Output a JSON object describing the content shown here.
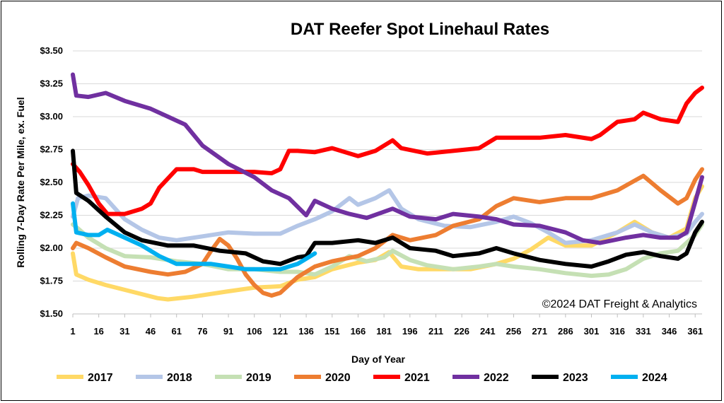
{
  "chart_data": {
    "type": "line",
    "title": "DAT Reefer Spot Linehaul Rates",
    "xlabel": "Day of Year",
    "ylabel": "Rolling 7-Day Rate Per Mile, ex. Fuel",
    "annotation": "©2024 DAT Freight & Analytics",
    "xlim": [
      1,
      365
    ],
    "ylim": [
      1.5,
      3.5
    ],
    "x_ticks": [
      1,
      16,
      31,
      46,
      61,
      76,
      91,
      106,
      121,
      136,
      151,
      166,
      181,
      196,
      211,
      226,
      241,
      256,
      271,
      286,
      301,
      316,
      331,
      346,
      361
    ],
    "y_ticks": [
      1.5,
      1.75,
      2.0,
      2.25,
      2.5,
      2.75,
      3.0,
      3.25,
      3.5
    ],
    "y_tick_labels": [
      "$1.50",
      "$1.75",
      "$2.00",
      "$2.25",
      "$2.50",
      "$2.75",
      "$3.00",
      "$3.25",
      "$3.50"
    ],
    "grid": true,
    "legend_position": "bottom",
    "series": [
      {
        "name": "2017",
        "color": "#ffd966",
        "points": [
          [
            1,
            1.96
          ],
          [
            3,
            1.8
          ],
          [
            10,
            1.76
          ],
          [
            20,
            1.72
          ],
          [
            35,
            1.67
          ],
          [
            50,
            1.62
          ],
          [
            56,
            1.61
          ],
          [
            70,
            1.63
          ],
          [
            90,
            1.67
          ],
          [
            106,
            1.7
          ],
          [
            121,
            1.71
          ],
          [
            131,
            1.76
          ],
          [
            141,
            1.78
          ],
          [
            151,
            1.84
          ],
          [
            166,
            1.89
          ],
          [
            176,
            1.91
          ],
          [
            184,
            1.97
          ],
          [
            191,
            1.86
          ],
          [
            201,
            1.84
          ],
          [
            216,
            1.84
          ],
          [
            231,
            1.84
          ],
          [
            246,
            1.88
          ],
          [
            256,
            1.92
          ],
          [
            266,
            1.99
          ],
          [
            276,
            2.08
          ],
          [
            286,
            2.02
          ],
          [
            301,
            2.02
          ],
          [
            316,
            2.12
          ],
          [
            326,
            2.2
          ],
          [
            336,
            2.12
          ],
          [
            346,
            2.08
          ],
          [
            356,
            2.15
          ],
          [
            361,
            2.38
          ],
          [
            365,
            2.47
          ]
        ]
      },
      {
        "name": "2018",
        "color": "#b4c6e7",
        "points": [
          [
            1,
            2.24
          ],
          [
            4,
            2.38
          ],
          [
            10,
            2.4
          ],
          [
            20,
            2.38
          ],
          [
            31,
            2.22
          ],
          [
            41,
            2.14
          ],
          [
            51,
            2.08
          ],
          [
            61,
            2.06
          ],
          [
            76,
            2.09
          ],
          [
            91,
            2.12
          ],
          [
            106,
            2.11
          ],
          [
            121,
            2.11
          ],
          [
            131,
            2.17
          ],
          [
            141,
            2.22
          ],
          [
            151,
            2.28
          ],
          [
            161,
            2.38
          ],
          [
            166,
            2.33
          ],
          [
            176,
            2.38
          ],
          [
            184,
            2.44
          ],
          [
            191,
            2.3
          ],
          [
            201,
            2.22
          ],
          [
            216,
            2.17
          ],
          [
            231,
            2.16
          ],
          [
            246,
            2.2
          ],
          [
            256,
            2.24
          ],
          [
            266,
            2.19
          ],
          [
            276,
            2.12
          ],
          [
            286,
            2.04
          ],
          [
            301,
            2.06
          ],
          [
            316,
            2.12
          ],
          [
            326,
            2.18
          ],
          [
            336,
            2.12
          ],
          [
            346,
            2.08
          ],
          [
            356,
            2.11
          ],
          [
            361,
            2.2
          ],
          [
            365,
            2.26
          ]
        ]
      },
      {
        "name": "2019",
        "color": "#c5e0b4",
        "points": [
          [
            1,
            2.18
          ],
          [
            4,
            2.15
          ],
          [
            10,
            2.08
          ],
          [
            20,
            2.0
          ],
          [
            31,
            1.94
          ],
          [
            46,
            1.93
          ],
          [
            61,
            1.9
          ],
          [
            76,
            1.88
          ],
          [
            91,
            1.84
          ],
          [
            106,
            1.84
          ],
          [
            121,
            1.82
          ],
          [
            131,
            1.82
          ],
          [
            141,
            1.8
          ],
          [
            151,
            1.86
          ],
          [
            161,
            1.94
          ],
          [
            171,
            1.9
          ],
          [
            181,
            1.93
          ],
          [
            186,
            1.98
          ],
          [
            196,
            1.91
          ],
          [
            206,
            1.87
          ],
          [
            221,
            1.84
          ],
          [
            236,
            1.86
          ],
          [
            246,
            1.88
          ],
          [
            256,
            1.86
          ],
          [
            271,
            1.84
          ],
          [
            286,
            1.81
          ],
          [
            301,
            1.79
          ],
          [
            311,
            1.8
          ],
          [
            321,
            1.84
          ],
          [
            331,
            1.92
          ],
          [
            341,
            1.96
          ],
          [
            351,
            1.98
          ],
          [
            361,
            2.1
          ],
          [
            365,
            2.18
          ]
        ]
      },
      {
        "name": "2020",
        "color": "#ed7d31",
        "points": [
          [
            1,
            2.0
          ],
          [
            3,
            2.04
          ],
          [
            10,
            2.0
          ],
          [
            20,
            1.93
          ],
          [
            31,
            1.86
          ],
          [
            46,
            1.82
          ],
          [
            56,
            1.8
          ],
          [
            66,
            1.82
          ],
          [
            76,
            1.88
          ],
          [
            81,
            1.98
          ],
          [
            86,
            2.07
          ],
          [
            91,
            2.02
          ],
          [
            96,
            1.92
          ],
          [
            101,
            1.8
          ],
          [
            106,
            1.72
          ],
          [
            111,
            1.66
          ],
          [
            116,
            1.64
          ],
          [
            121,
            1.66
          ],
          [
            131,
            1.78
          ],
          [
            141,
            1.86
          ],
          [
            151,
            1.9
          ],
          [
            166,
            1.94
          ],
          [
            176,
            2.0
          ],
          [
            186,
            2.1
          ],
          [
            196,
            2.06
          ],
          [
            211,
            2.1
          ],
          [
            221,
            2.17
          ],
          [
            236,
            2.22
          ],
          [
            246,
            2.32
          ],
          [
            256,
            2.38
          ],
          [
            271,
            2.35
          ],
          [
            286,
            2.38
          ],
          [
            301,
            2.38
          ],
          [
            316,
            2.44
          ],
          [
            331,
            2.55
          ],
          [
            341,
            2.44
          ],
          [
            351,
            2.34
          ],
          [
            356,
            2.38
          ],
          [
            361,
            2.52
          ],
          [
            365,
            2.6
          ]
        ]
      },
      {
        "name": "2021",
        "color": "#ff0000",
        "points": [
          [
            1,
            2.64
          ],
          [
            5,
            2.58
          ],
          [
            10,
            2.48
          ],
          [
            16,
            2.34
          ],
          [
            21,
            2.26
          ],
          [
            31,
            2.26
          ],
          [
            41,
            2.3
          ],
          [
            46,
            2.34
          ],
          [
            51,
            2.46
          ],
          [
            56,
            2.53
          ],
          [
            61,
            2.6
          ],
          [
            71,
            2.6
          ],
          [
            76,
            2.58
          ],
          [
            91,
            2.58
          ],
          [
            106,
            2.58
          ],
          [
            116,
            2.57
          ],
          [
            121,
            2.6
          ],
          [
            126,
            2.74
          ],
          [
            131,
            2.74
          ],
          [
            141,
            2.73
          ],
          [
            151,
            2.76
          ],
          [
            166,
            2.7
          ],
          [
            176,
            2.74
          ],
          [
            186,
            2.82
          ],
          [
            191,
            2.76
          ],
          [
            206,
            2.72
          ],
          [
            221,
            2.74
          ],
          [
            236,
            2.76
          ],
          [
            246,
            2.84
          ],
          [
            256,
            2.84
          ],
          [
            271,
            2.84
          ],
          [
            286,
            2.86
          ],
          [
            301,
            2.83
          ],
          [
            306,
            2.86
          ],
          [
            316,
            2.96
          ],
          [
            326,
            2.98
          ],
          [
            331,
            3.03
          ],
          [
            341,
            2.98
          ],
          [
            351,
            2.96
          ],
          [
            356,
            3.1
          ],
          [
            361,
            3.18
          ],
          [
            365,
            3.22
          ]
        ]
      },
      {
        "name": "2022",
        "color": "#7030a0",
        "points": [
          [
            1,
            3.32
          ],
          [
            3,
            3.16
          ],
          [
            10,
            3.15
          ],
          [
            20,
            3.18
          ],
          [
            31,
            3.12
          ],
          [
            46,
            3.06
          ],
          [
            56,
            3.0
          ],
          [
            66,
            2.94
          ],
          [
            76,
            2.78
          ],
          [
            91,
            2.64
          ],
          [
            106,
            2.54
          ],
          [
            116,
            2.44
          ],
          [
            126,
            2.38
          ],
          [
            136,
            2.25
          ],
          [
            141,
            2.36
          ],
          [
            151,
            2.3
          ],
          [
            161,
            2.26
          ],
          [
            171,
            2.23
          ],
          [
            186,
            2.3
          ],
          [
            196,
            2.24
          ],
          [
            211,
            2.22
          ],
          [
            221,
            2.26
          ],
          [
            236,
            2.24
          ],
          [
            246,
            2.22
          ],
          [
            256,
            2.18
          ],
          [
            271,
            2.17
          ],
          [
            286,
            2.12
          ],
          [
            296,
            2.06
          ],
          [
            306,
            2.04
          ],
          [
            321,
            2.08
          ],
          [
            331,
            2.1
          ],
          [
            341,
            2.08
          ],
          [
            351,
            2.08
          ],
          [
            356,
            2.12
          ],
          [
            361,
            2.35
          ],
          [
            365,
            2.54
          ]
        ]
      },
      {
        "name": "2023",
        "color": "#000000",
        "points": [
          [
            1,
            2.74
          ],
          [
            3,
            2.42
          ],
          [
            10,
            2.36
          ],
          [
            20,
            2.24
          ],
          [
            31,
            2.12
          ],
          [
            41,
            2.06
          ],
          [
            56,
            2.02
          ],
          [
            71,
            2.02
          ],
          [
            86,
            1.98
          ],
          [
            101,
            1.96
          ],
          [
            111,
            1.9
          ],
          [
            121,
            1.88
          ],
          [
            131,
            1.93
          ],
          [
            136,
            1.94
          ],
          [
            141,
            2.04
          ],
          [
            151,
            2.04
          ],
          [
            166,
            2.06
          ],
          [
            176,
            2.04
          ],
          [
            186,
            2.08
          ],
          [
            196,
            2.0
          ],
          [
            211,
            1.98
          ],
          [
            221,
            1.94
          ],
          [
            236,
            1.96
          ],
          [
            246,
            2.0
          ],
          [
            256,
            1.96
          ],
          [
            271,
            1.91
          ],
          [
            286,
            1.88
          ],
          [
            301,
            1.86
          ],
          [
            311,
            1.9
          ],
          [
            321,
            1.95
          ],
          [
            331,
            1.97
          ],
          [
            341,
            1.94
          ],
          [
            351,
            1.92
          ],
          [
            356,
            1.96
          ],
          [
            361,
            2.12
          ],
          [
            365,
            2.2
          ]
        ]
      },
      {
        "name": "2024",
        "color": "#00b0f0",
        "points": [
          [
            1,
            2.34
          ],
          [
            3,
            2.12
          ],
          [
            10,
            2.1
          ],
          [
            16,
            2.1
          ],
          [
            21,
            2.14
          ],
          [
            31,
            2.08
          ],
          [
            41,
            2.02
          ],
          [
            51,
            1.94
          ],
          [
            61,
            1.88
          ],
          [
            71,
            1.88
          ],
          [
            81,
            1.88
          ],
          [
            91,
            1.86
          ],
          [
            101,
            1.84
          ],
          [
            111,
            1.84
          ],
          [
            121,
            1.84
          ],
          [
            131,
            1.88
          ],
          [
            136,
            1.92
          ],
          [
            141,
            1.96
          ]
        ]
      }
    ]
  }
}
